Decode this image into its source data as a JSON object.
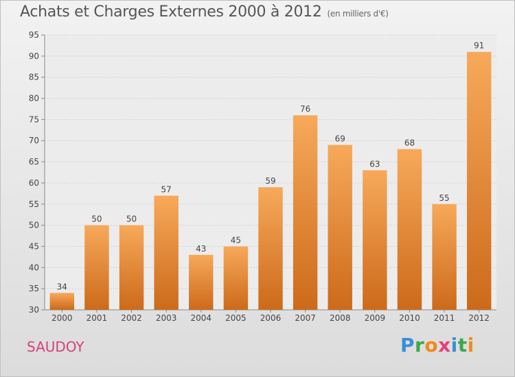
{
  "header": {
    "title": "Achats et Charges Externes 2000 à 2012",
    "unit": "(en milliers d'€)"
  },
  "footer": {
    "location": "SAUDOY",
    "brand_letters": [
      {
        "ch": "P",
        "color": "#3a8fd6"
      },
      {
        "ch": "r",
        "color": "#3aa84a"
      },
      {
        "ch": "o",
        "color": "#f08a1c"
      },
      {
        "ch": "x",
        "color": "#e8407a"
      },
      {
        "ch": "i",
        "color": "#3a8fd6"
      },
      {
        "ch": "t",
        "color": "#3aa84a"
      },
      {
        "ch": "i",
        "color": "#f08a1c"
      }
    ]
  },
  "chart_data": {
    "type": "bar",
    "categories": [
      "2000",
      "2001",
      "2002",
      "2003",
      "2004",
      "2005",
      "2006",
      "2007",
      "2008",
      "2009",
      "2010",
      "2011",
      "2012"
    ],
    "values": [
      34,
      50,
      50,
      57,
      43,
      45,
      59,
      76,
      69,
      63,
      68,
      55,
      91
    ],
    "ylim": [
      30,
      95
    ],
    "yticks": [
      30,
      35,
      40,
      45,
      50,
      55,
      60,
      65,
      70,
      75,
      80,
      85,
      90,
      95
    ],
    "grid": true,
    "bar_color_top": "#f7a95a",
    "bar_color_bottom": "#cc6a1a"
  }
}
